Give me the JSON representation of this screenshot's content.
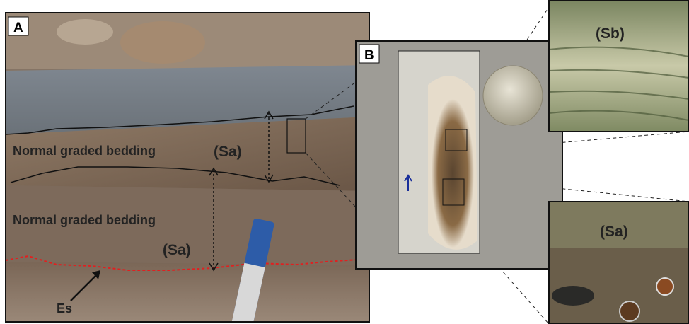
{
  "panel_a": {
    "label": "A",
    "bedding_upper": "Normal graded bedding",
    "unit_upper": "(Sa)",
    "bedding_lower": "Normal graded bedding",
    "unit_lower": "(Sa)",
    "erosion_surface": "Es"
  },
  "panel_b": {
    "label": "B"
  },
  "inset_top": {
    "label": "(Sb)"
  },
  "inset_bottom": {
    "label": "(Sa)"
  }
}
